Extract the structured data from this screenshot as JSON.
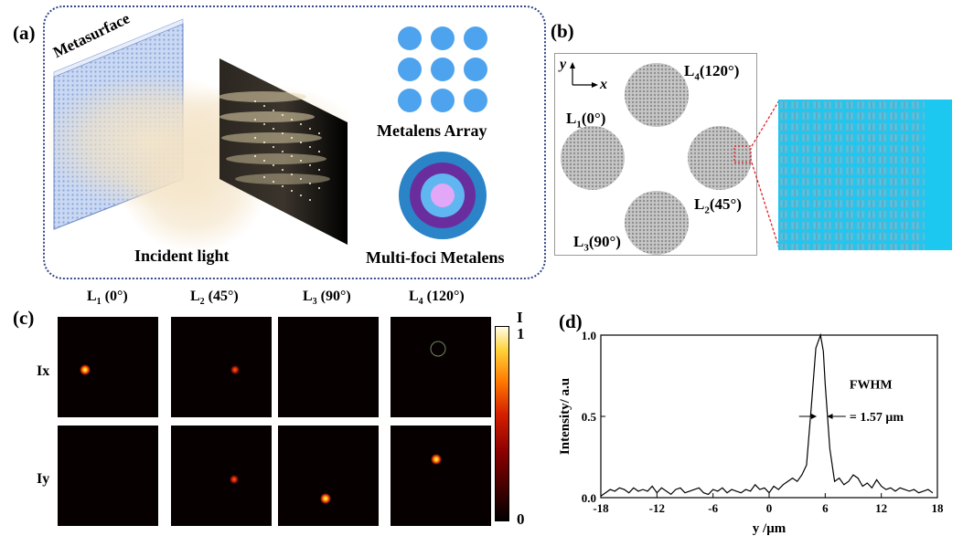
{
  "panel_labels": {
    "a": "(a)",
    "b": "(b)",
    "c": "(c)",
    "d": "(d)"
  },
  "panel_a": {
    "metasurface": "Metasurface",
    "incident_light": "Incident light",
    "metalens_array": "Metalens Array",
    "multi_foci": "Multi-foci Metalens"
  },
  "panel_b": {
    "axis_y": "y",
    "axis_x": "x",
    "lenses": [
      {
        "name": "L",
        "sub": "1",
        "angle": "(0°)"
      },
      {
        "name": "L",
        "sub": "2",
        "angle": "(45°)"
      },
      {
        "name": "L",
        "sub": "3",
        "angle": "(90°)"
      },
      {
        "name": "L",
        "sub": "4",
        "angle": "(120°)"
      }
    ]
  },
  "panel_c": {
    "columns": [
      {
        "name": "L",
        "sub": "1",
        "angle": " (0°)"
      },
      {
        "name": "L",
        "sub": "2",
        "angle": " (45°)"
      },
      {
        "name": "L",
        "sub": "3",
        "angle": " (90°)"
      },
      {
        "name": "L",
        "sub": "4",
        "angle": " (120°)"
      }
    ],
    "rows": [
      "Ix",
      "Iy"
    ],
    "colorbar_title": "I",
    "colorbar_max": "1",
    "colorbar_min": "0"
  },
  "chart_data": {
    "type": "line",
    "xlabel": "y /μm",
    "ylabel": "Intensity/ a.u",
    "xlim": [
      -18,
      18
    ],
    "ylim": [
      0,
      1
    ],
    "xticks": [
      "-18",
      "-12",
      "-6",
      "0",
      "6",
      "12",
      "18"
    ],
    "yticks": [
      "0.0",
      "0.5",
      "1.0"
    ],
    "annotation_title": "FWHM",
    "annotation_value": "= 1.57 μm",
    "series": [
      {
        "x": [
          -18,
          -17.5,
          -17,
          -16.5,
          -16,
          -15.5,
          -15,
          -14.5,
          -14,
          -13.5,
          -13,
          -12.5,
          -12,
          -11.5,
          -11,
          -10.5,
          -10,
          -9.5,
          -9,
          -8.5,
          -8,
          -7.5,
          -7,
          -6.5,
          -6,
          -5.5,
          -5,
          -4.5,
          -4,
          -3.5,
          -3,
          -2.5,
          -2,
          -1.5,
          -1,
          -0.5,
          0,
          0.5,
          1,
          1.5,
          2,
          2.5,
          3,
          3.5,
          4,
          4.5,
          5,
          5.5,
          5.8,
          6,
          6.5,
          7,
          7.5,
          8,
          8.5,
          9,
          9.5,
          10,
          10.5,
          11,
          11.5,
          12,
          12.5,
          13,
          13.5,
          14,
          14.5,
          15,
          15.5,
          16,
          16.5,
          17,
          17.5
        ],
        "y": [
          0.01,
          0.03,
          0.05,
          0.04,
          0.06,
          0.05,
          0.03,
          0.06,
          0.04,
          0.05,
          0.04,
          0.07,
          0.03,
          0.06,
          0.04,
          0.02,
          0.05,
          0.06,
          0.03,
          0.04,
          0.05,
          0.06,
          0.03,
          0.02,
          0.05,
          0.04,
          0.06,
          0.03,
          0.05,
          0.04,
          0.03,
          0.05,
          0.04,
          0.08,
          0.05,
          0.06,
          0.03,
          0.07,
          0.05,
          0.08,
          0.1,
          0.12,
          0.1,
          0.14,
          0.2,
          0.55,
          0.92,
          1.0,
          0.9,
          0.7,
          0.3,
          0.1,
          0.12,
          0.08,
          0.1,
          0.14,
          0.12,
          0.07,
          0.09,
          0.06,
          0.11,
          0.07,
          0.05,
          0.06,
          0.04,
          0.06,
          0.05,
          0.04,
          0.05,
          0.03,
          0.04,
          0.05,
          0.03
        ]
      }
    ]
  },
  "colors": {
    "panel_b_zoom_bg": "#1dc8f0",
    "metalens_blue": "#4ea3ee",
    "multifoci_outer": "#2b84c8",
    "multifoci_mid": "#6a2d9e",
    "multifoci_inner": "#e2a7f7"
  }
}
